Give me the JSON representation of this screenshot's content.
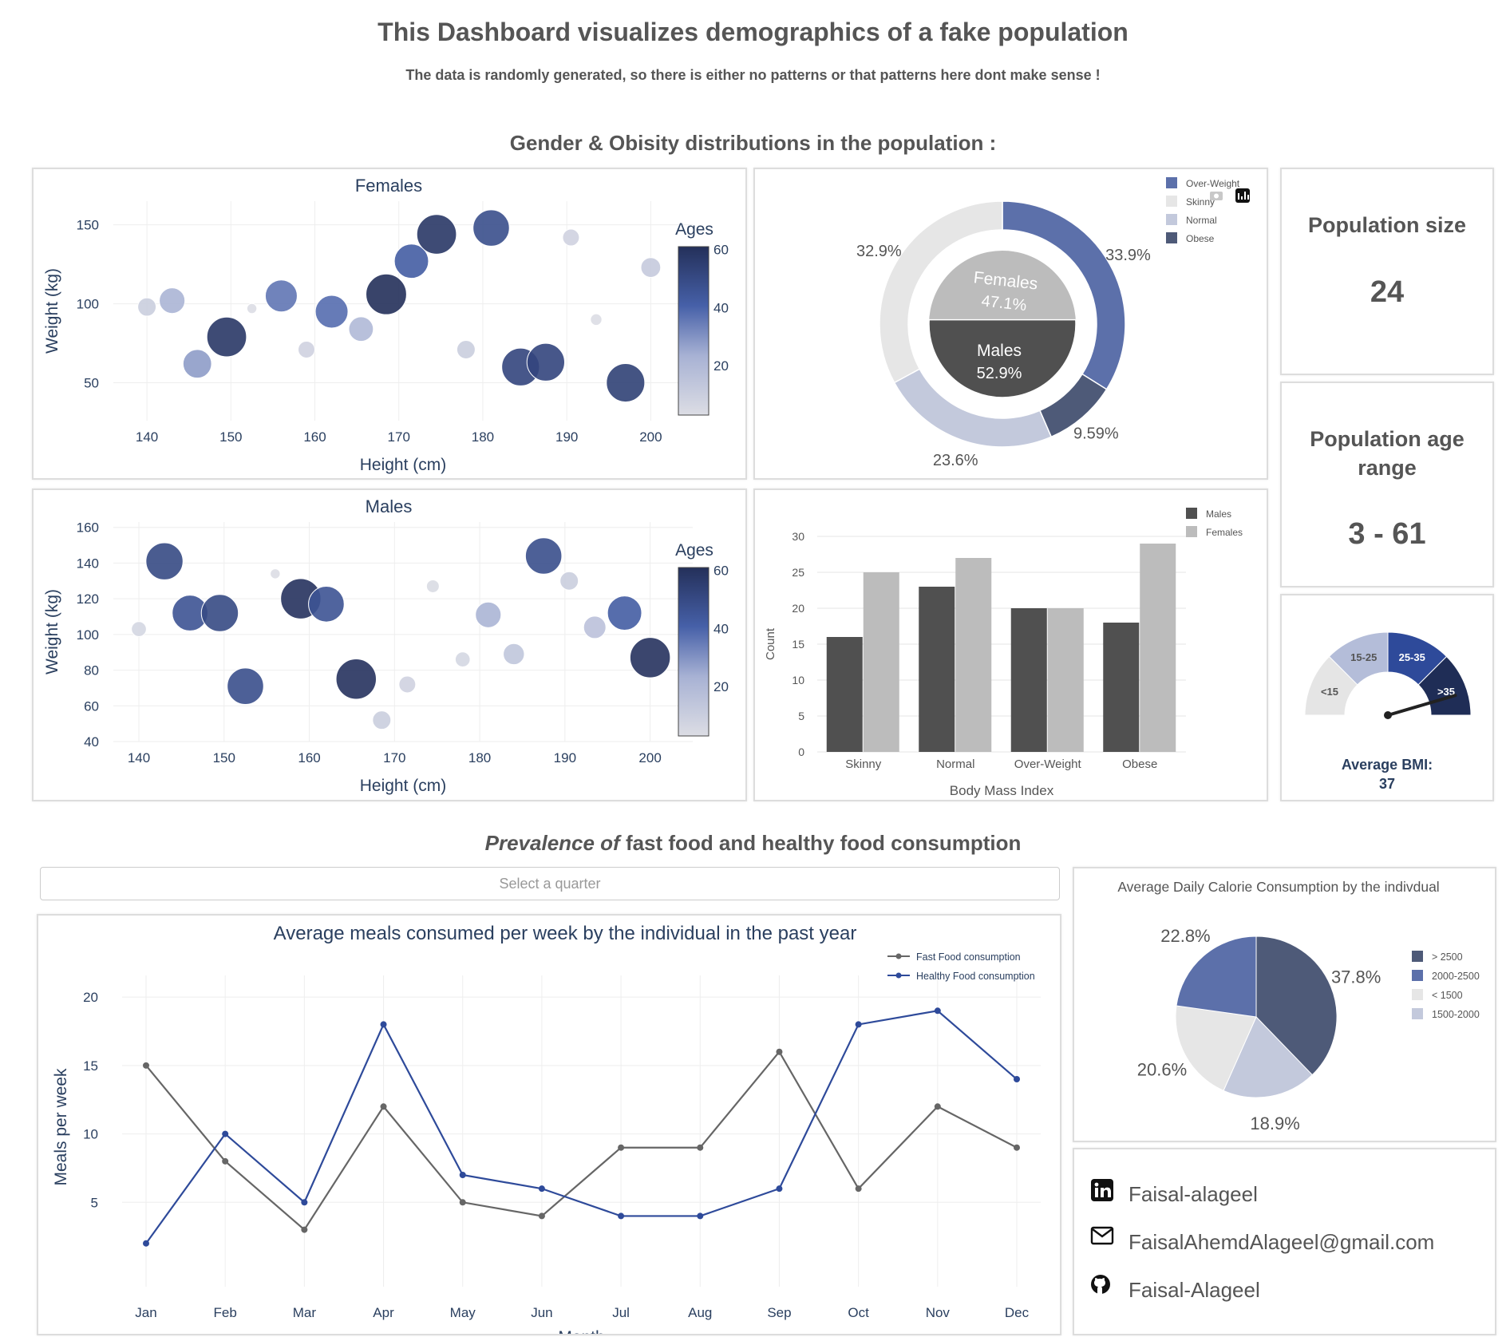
{
  "header": {
    "title": "This Dashboard visualizes demographics of a fake population",
    "subtitle": "The data is randomly generated, so there is either no patterns or that patterns here dont make sense !"
  },
  "section1": {
    "title": "Gender & Obisity distributions in the population :"
  },
  "section2": {
    "title_em": "Prevalence of",
    "title_rest": " fast food and healthy food consumption"
  },
  "stats": {
    "population_size_label": "Population size",
    "population_size": "24",
    "age_range_label": "Population age range",
    "age_range": "3 - 61",
    "bmi_label": "Average BMI:",
    "bmi_value": "37",
    "gauge_bands": [
      "<15",
      "15-25",
      "25-35",
      ">35"
    ],
    "gauge_colors": [
      "#e5e5e5",
      "#b4bdd9",
      "#2e4a9a",
      "#1f2d56"
    ]
  },
  "quarter_select": {
    "placeholder": "Select a quarter"
  },
  "contacts": {
    "linkedin": "Faisal-alageel",
    "email": "FaisalAhemdAlageel@gmail.com",
    "github": "Faisal-Alageel"
  },
  "chart_data": [
    {
      "id": "females",
      "type": "scatter",
      "title": "Females",
      "xlabel": "Height (cm)",
      "ylabel": "Weight (kg)",
      "colorbar_title": "Ages",
      "colorbar_ticks": [
        20,
        40,
        60
      ],
      "xlim": [
        136,
        205
      ],
      "ylim": [
        26,
        165
      ],
      "xticks": [
        140,
        150,
        160,
        170,
        180,
        190,
        200
      ],
      "yticks": [
        50,
        100,
        150
      ],
      "points": [
        {
          "x": 140,
          "y": 98,
          "age": 10
        },
        {
          "x": 143,
          "y": 102,
          "age": 22
        },
        {
          "x": 146,
          "y": 62,
          "age": 28
        },
        {
          "x": 149.5,
          "y": 79,
          "age": 58
        },
        {
          "x": 152.5,
          "y": 97,
          "age": 2
        },
        {
          "x": 156,
          "y": 105,
          "age": 36
        },
        {
          "x": 159,
          "y": 71,
          "age": 8
        },
        {
          "x": 162,
          "y": 95,
          "age": 38
        },
        {
          "x": 165.5,
          "y": 84,
          "age": 20
        },
        {
          "x": 168.5,
          "y": 106,
          "age": 61
        },
        {
          "x": 171.5,
          "y": 127,
          "age": 42
        },
        {
          "x": 174.5,
          "y": 144,
          "age": 58
        },
        {
          "x": 178,
          "y": 71,
          "age": 10
        },
        {
          "x": 181,
          "y": 148,
          "age": 48
        },
        {
          "x": 184.5,
          "y": 60,
          "age": 52
        },
        {
          "x": 187.5,
          "y": 63,
          "age": 52
        },
        {
          "x": 190.5,
          "y": 142,
          "age": 8
        },
        {
          "x": 193.5,
          "y": 90,
          "age": 3
        },
        {
          "x": 197,
          "y": 50,
          "age": 54
        },
        {
          "x": 200,
          "y": 123,
          "age": 12
        }
      ]
    },
    {
      "id": "males",
      "type": "scatter",
      "title": "Males",
      "xlabel": "Height (cm)",
      "ylabel": "Weight (kg)",
      "colorbar_title": "Ages",
      "colorbar_ticks": [
        20,
        40,
        60
      ],
      "xlim": [
        137,
        205
      ],
      "ylim": [
        40,
        163
      ],
      "xticks": [
        140,
        150,
        160,
        170,
        180,
        190,
        200
      ],
      "yticks": [
        40,
        60,
        80,
        100,
        120,
        140,
        160
      ],
      "points": [
        {
          "x": 140,
          "y": 103,
          "age": 6
        },
        {
          "x": 143,
          "y": 141,
          "age": 50
        },
        {
          "x": 146,
          "y": 112,
          "age": 46
        },
        {
          "x": 149.5,
          "y": 112,
          "age": 50
        },
        {
          "x": 152.5,
          "y": 71,
          "age": 48
        },
        {
          "x": 156,
          "y": 134,
          "age": 2
        },
        {
          "x": 159,
          "y": 120,
          "age": 60
        },
        {
          "x": 162,
          "y": 117,
          "age": 46
        },
        {
          "x": 165.5,
          "y": 75,
          "age": 60
        },
        {
          "x": 168.5,
          "y": 52,
          "age": 10
        },
        {
          "x": 171.5,
          "y": 72,
          "age": 8
        },
        {
          "x": 174.5,
          "y": 127,
          "age": 4
        },
        {
          "x": 178,
          "y": 86,
          "age": 6
        },
        {
          "x": 181,
          "y": 111,
          "age": 22
        },
        {
          "x": 184,
          "y": 89,
          "age": 14
        },
        {
          "x": 187.5,
          "y": 144,
          "age": 48
        },
        {
          "x": 190.5,
          "y": 130,
          "age": 10
        },
        {
          "x": 193.5,
          "y": 104,
          "age": 16
        },
        {
          "x": 197,
          "y": 112,
          "age": 42
        },
        {
          "x": 200,
          "y": 87,
          "age": 60
        }
      ]
    },
    {
      "id": "obesity_donut",
      "type": "pie",
      "outer_ring": [
        {
          "label": "Over-Weight",
          "value": 33.9,
          "text": "33.9%",
          "color": "#5c70aa"
        },
        {
          "label": "Obese",
          "value": 9.59,
          "text": "9.59%",
          "color": "#4e5a78"
        },
        {
          "label": "Normal",
          "value": 23.6,
          "text": "23.6%",
          "color": "#c3c9dc"
        },
        {
          "label": "Skinny",
          "value": 32.9,
          "text": "32.9%",
          "color": "#e6e6e6"
        }
      ],
      "inner_ring": [
        {
          "label": "Males",
          "value": 52.9,
          "text": "52.9%",
          "color": "#505050"
        },
        {
          "label": "Females",
          "value": 47.1,
          "text": "47.1%",
          "color": "#bcbcbc"
        }
      ],
      "legend": [
        "Over-Weight",
        "Skinny",
        "Normal",
        "Obese"
      ],
      "legend_colors": [
        "#5c70aa",
        "#e6e6e6",
        "#c3c9dc",
        "#4e5a78"
      ]
    },
    {
      "id": "bmi_bars",
      "type": "bar",
      "categories": [
        "Skinny",
        "Normal",
        "Over-Weight",
        "Obese"
      ],
      "series": [
        {
          "name": "Males",
          "values": [
            16,
            23,
            20,
            18
          ],
          "color": "#505050"
        },
        {
          "name": "Females",
          "values": [
            25,
            27,
            20,
            29
          ],
          "color": "#bcbcbc"
        }
      ],
      "xlabel": "Body Mass Index",
      "ylabel": "Count",
      "ylim": [
        0,
        30
      ],
      "yticks": [
        0,
        5,
        10,
        15,
        20,
        25,
        30
      ]
    },
    {
      "id": "meals_line",
      "type": "line",
      "title": "Average meals consumed per week by the individual in the past year",
      "xlabel": "Month",
      "ylabel": "Meals per week",
      "categories": [
        "Jan",
        "Feb",
        "Mar",
        "Apr",
        "May",
        "Jun",
        "Jul",
        "Aug",
        "Sep",
        "Oct",
        "Nov",
        "Dec"
      ],
      "ylim": [
        0,
        21
      ],
      "yticks": [
        5,
        10,
        15,
        20
      ],
      "series": [
        {
          "name": "Fast Food consumption",
          "values": [
            15,
            8,
            3,
            12,
            5,
            4,
            9,
            9,
            16,
            6,
            12,
            9
          ],
          "color": "#666666"
        },
        {
          "name": "Healthy Food consumption",
          "values": [
            2,
            10,
            5,
            18,
            7,
            6,
            4,
            4,
            6,
            18,
            19,
            14
          ],
          "color": "#2e4a9a"
        }
      ]
    },
    {
      "id": "calorie_pie",
      "type": "pie",
      "title": "Average Daily Calorie Consumption by the indivdual",
      "slices": [
        {
          "label": "> 2500",
          "value": 37.8,
          "text": "37.8%",
          "color": "#4e5a78"
        },
        {
          "label": "1500-2000",
          "value": 18.9,
          "text": "18.9%",
          "color": "#c3c9dc"
        },
        {
          "label": "< 1500",
          "value": 20.6,
          "text": "20.6%",
          "color": "#e6e6e6"
        },
        {
          "label": "2000-2500",
          "value": 22.8,
          "text": "22.8%",
          "color": "#5c70aa"
        }
      ],
      "legend": [
        "> 2500",
        "2000-2500",
        "< 1500",
        "1500-2000"
      ],
      "legend_colors": [
        "#4e5a78",
        "#5c70aa",
        "#e6e6e6",
        "#c3c9dc"
      ]
    }
  ]
}
